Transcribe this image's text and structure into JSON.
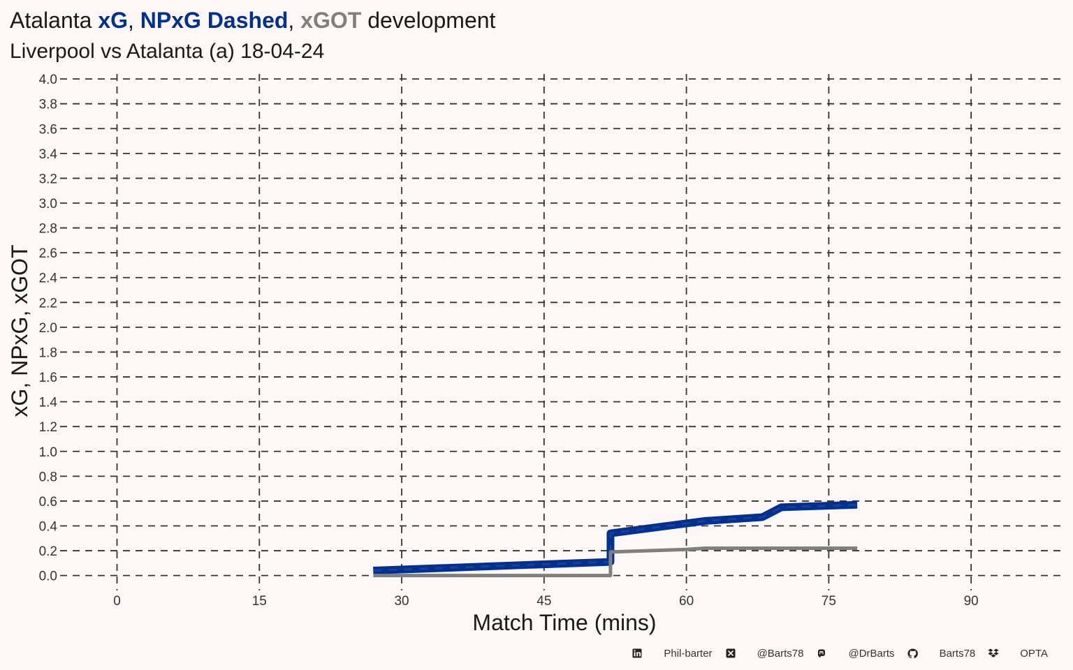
{
  "header": {
    "title_prefix": "Atalanta ",
    "title_xg": "xG",
    "title_sep1": ", ",
    "title_npxg": "NPxG Dashed",
    "title_sep2": ", ",
    "title_xgot": "xGOT",
    "title_suffix": " development",
    "subtitle": "Liverpool vs Atalanta (a) 18-04-24"
  },
  "colors": {
    "xg": "#003090",
    "xgot": "#7f7f7f",
    "grid": "#333333",
    "background": "#fdf8f7"
  },
  "footer": {
    "items": [
      {
        "icon": "linkedin-icon",
        "text": "Phil-barter"
      },
      {
        "icon": "x-twitter-icon",
        "text": "@Barts78"
      },
      {
        "icon": "mastodon-icon",
        "text": "@DrBarts"
      },
      {
        "icon": "github-icon",
        "text": "Barts78"
      },
      {
        "icon": "dropbox-icon",
        "text": "OPTA"
      }
    ]
  },
  "chart_data": {
    "type": "line",
    "title": "Atalanta xG, NPxG Dashed, xGOT development",
    "subtitle": "Liverpool vs Atalanta (a) 18-04-24",
    "xlabel": "Match Time (mins)",
    "ylabel": "xG, NPxG, xGOT",
    "xlim": [
      -6,
      100
    ],
    "ylim": [
      -0.12,
      4.04
    ],
    "xticks": [
      0,
      15,
      30,
      45,
      60,
      75,
      90
    ],
    "yticks": [
      0.0,
      0.2,
      0.4,
      0.6,
      0.8,
      1.0,
      1.2,
      1.4,
      1.6,
      1.8,
      2.0,
      2.2,
      2.4,
      2.6,
      2.8,
      3.0,
      3.2,
      3.4,
      3.6,
      3.8,
      4.0
    ],
    "grid": true,
    "legend": "in title",
    "series": [
      {
        "name": "xG",
        "style": "solid",
        "x": [
          27,
          52,
          52,
          62,
          68,
          70,
          78
        ],
        "y": [
          0.04,
          0.11,
          0.34,
          0.44,
          0.47,
          0.55,
          0.57
        ]
      },
      {
        "name": "NPxG",
        "style": "dashed",
        "x": [
          27,
          52,
          52,
          62,
          68,
          70,
          78
        ],
        "y": [
          0.04,
          0.11,
          0.34,
          0.44,
          0.47,
          0.55,
          0.57
        ]
      },
      {
        "name": "xGOT",
        "style": "solid",
        "x": [
          27,
          52,
          52,
          60,
          62,
          78
        ],
        "y": [
          0.0,
          0.0,
          0.19,
          0.21,
          0.22,
          0.22
        ]
      }
    ]
  }
}
